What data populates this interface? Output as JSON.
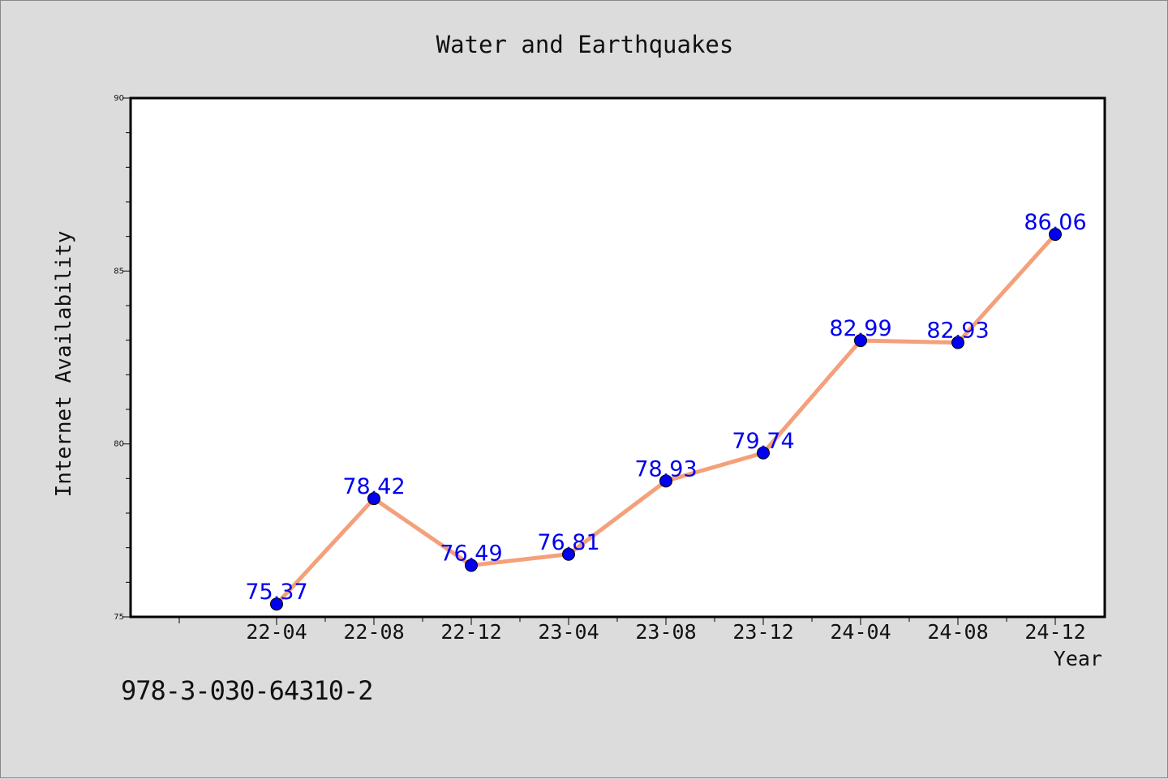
{
  "chart_data": {
    "type": "line",
    "title": "Water and Earthquakes",
    "xlabel": "Year",
    "ylabel": "Internet Availability",
    "x": [
      "22-04",
      "22-08",
      "22-12",
      "23-04",
      "23-08",
      "23-12",
      "24-04",
      "24-08",
      "24-12"
    ],
    "values": [
      75.37,
      78.42,
      76.49,
      76.81,
      78.93,
      79.74,
      82.99,
      82.93,
      86.06
    ],
    "data_labels": [
      "75.37",
      "78.42",
      "76.49",
      "76.81",
      "78.93",
      "79.74",
      "82.99",
      "82.93",
      "86.06"
    ],
    "ylim": [
      75,
      90
    ],
    "yticks": [
      "75",
      "80",
      "85",
      "90"
    ],
    "grid": false,
    "line_color": "#f4a07a",
    "marker_color": "#0000ee",
    "label_color": "#0000ee"
  },
  "footer": {
    "isbn": "978-3-030-64310-2"
  }
}
